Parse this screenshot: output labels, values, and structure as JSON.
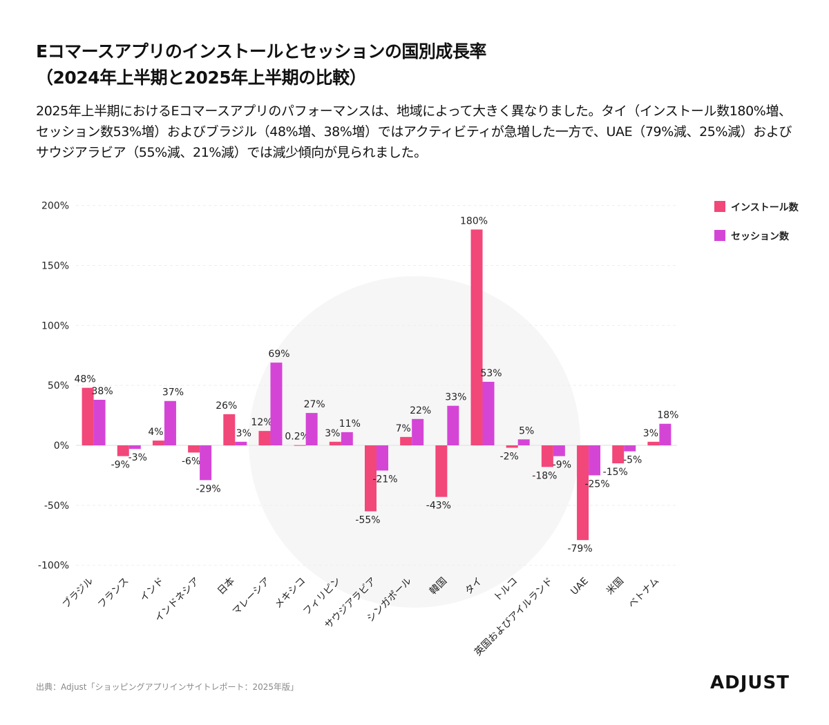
{
  "title_line1": "Eコマースアプリのインストールとセッションの国別成長率",
  "title_line2": "（2024年上半期と2025年上半期の比較）",
  "subtitle": "2025年上半期におけるEコマースアプリのパフォーマンスは、地域によって大きく異なりました。タイ（インストール数180%増、セッション数53%増）およびブラジル（48%増、38%増）ではアクティビティが急増した一方で、UAE（79%減、25%減）およびサウジアラビア（55%減、21%減）では減少傾向が見られました。",
  "footer": "出典：Adjust「ショッピングアプリインサイトレポート：2025年版」",
  "logo": "ADJUST",
  "colors": {
    "installs": "#f24779",
    "sessions": "#d445d6"
  },
  "chart_data": {
    "type": "bar",
    "categories": [
      "ブラジル",
      "フランス",
      "インド",
      "インドネシア",
      "日本",
      "マレーシア",
      "メキシコ",
      "フィリピン",
      "サウジアラビア",
      "シンガポール",
      "韓国",
      "タイ",
      "トルコ",
      "英国およびアイルランド",
      "UAE",
      "米国",
      "ベトナム"
    ],
    "series": [
      {
        "name": "インストール数",
        "values": [
          48,
          -9,
          4,
          -6,
          26,
          12,
          0.2,
          3,
          -55,
          7,
          -43,
          180,
          -2,
          -18,
          -79,
          -15,
          3
        ]
      },
      {
        "name": "セッション数",
        "values": [
          38,
          -3,
          37,
          -29,
          3,
          69,
          27,
          11,
          -21,
          22,
          33,
          53,
          5,
          -9,
          -25,
          -5,
          18
        ]
      }
    ],
    "ylim": [
      -100,
      200
    ],
    "yticks": [
      -100,
      -50,
      0,
      50,
      100,
      150,
      200
    ],
    "ytick_labels": [
      "-100%",
      "-50%",
      "0%",
      "50%",
      "100%",
      "150%",
      "200%"
    ],
    "grid": true,
    "legend": "top-right"
  }
}
